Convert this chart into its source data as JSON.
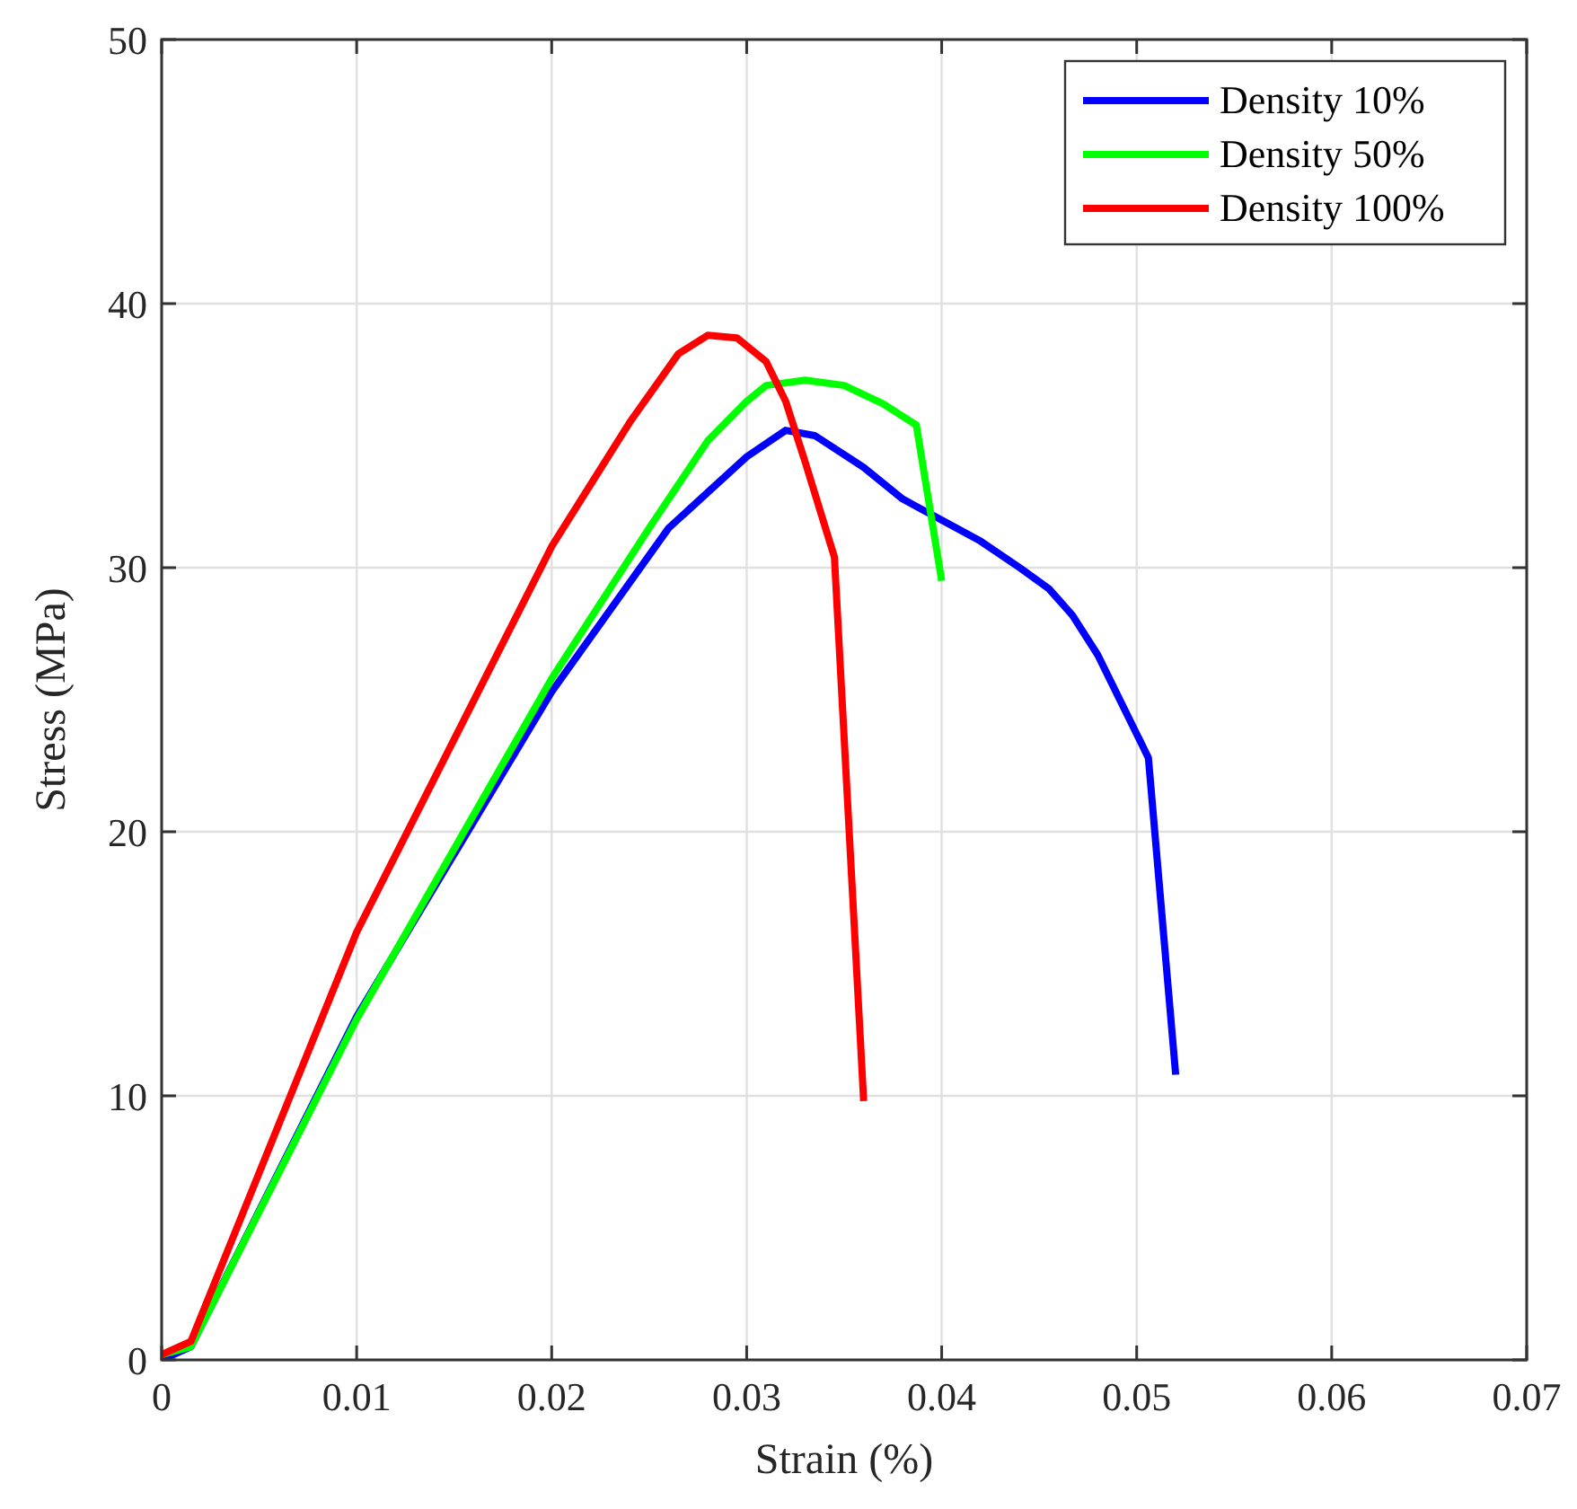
{
  "chart_data": {
    "type": "line",
    "xlabel": "Strain (%)",
    "ylabel": "Stress (MPa)",
    "xlim": [
      0,
      0.07
    ],
    "xticks": [
      0,
      0.01,
      0.02,
      0.03,
      0.04,
      0.05,
      0.06,
      0.07
    ],
    "ylim": [
      0,
      50
    ],
    "yticks": [
      0,
      10,
      20,
      30,
      40,
      50
    ],
    "grid": true,
    "legend": "top right",
    "marker": "none",
    "line_style": "solid",
    "series": [
      {
        "name": "Density 10%",
        "color": "#0000ff",
        "x": [
          0,
          0.0015,
          0.01,
          0.02,
          0.026,
          0.03,
          0.032,
          0.0335,
          0.036,
          0.038,
          0.04,
          0.042,
          0.044,
          0.0455,
          0.0467,
          0.048,
          0.0506,
          0.052
        ],
        "values": [
          0,
          0.5,
          13,
          25.3,
          31.5,
          34.2,
          35.2,
          35,
          33.8,
          32.6,
          31.8,
          31,
          30,
          29.2,
          28.2,
          26.7,
          22.8,
          10.8
        ]
      },
      {
        "name": "Density 50%",
        "color": "#00ff00",
        "x": [
          0,
          0.0015,
          0.01,
          0.02,
          0.025,
          0.028,
          0.03,
          0.031,
          0.033,
          0.035,
          0.037,
          0.0387,
          0.04
        ],
        "values": [
          0.2,
          0.5,
          12.9,
          25.8,
          31.5,
          34.8,
          36.3,
          36.9,
          37.1,
          36.9,
          36.2,
          35.4,
          29.5
        ]
      },
      {
        "name": "Density 100%",
        "color": "#ff0000",
        "x": [
          0,
          0.0015,
          0.01,
          0.02,
          0.024,
          0.0265,
          0.028,
          0.0295,
          0.031,
          0.032,
          0.033,
          0.0345,
          0.036
        ],
        "values": [
          0.2,
          0.7,
          16.2,
          30.8,
          35.5,
          38.1,
          38.8,
          38.7,
          37.8,
          36.3,
          34,
          30.4,
          9.8
        ]
      }
    ]
  }
}
